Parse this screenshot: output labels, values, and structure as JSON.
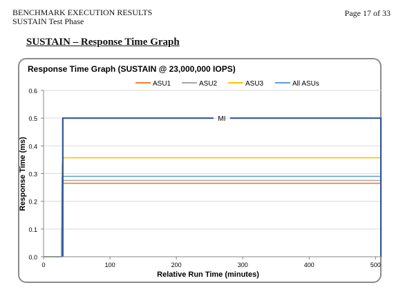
{
  "header": {
    "line1": "BENCHMARK EXECUTION RESULTS",
    "line2": "SUSTAIN Test Phase",
    "page": "Page 17 of 33"
  },
  "section_title": "SUSTAIN – Response Time Graph",
  "chart_data": {
    "type": "line",
    "title": "Response Time Graph (SUSTAIN @ 23,000,000 IOPS)",
    "xlabel": "Relative Run Time (minutes)",
    "ylabel": "Response Time (ms)",
    "xlim": [
      0,
      510
    ],
    "ylim": [
      0,
      0.6
    ],
    "xticks": [
      0,
      100,
      200,
      300,
      400,
      500
    ],
    "yticks": [
      "0.0",
      "0.1",
      "0.2",
      "0.3",
      "0.4",
      "0.5",
      "0.6"
    ],
    "grid": true,
    "legend_position": "top",
    "series": [
      {
        "name": "ASU1",
        "color": "#ED7D31",
        "x": [
          0,
          27,
          28,
          30,
          508
        ],
        "y": [
          0,
          0,
          0.27,
          0.265,
          0.265
        ]
      },
      {
        "name": "ASU2",
        "color": "#A5A5A5",
        "x": [
          0,
          27,
          28,
          30,
          508
        ],
        "y": [
          0,
          0,
          0.28,
          0.275,
          0.275
        ]
      },
      {
        "name": "ASU3",
        "color": "#FFC000",
        "x": [
          0,
          27,
          28,
          30,
          508
        ],
        "y": [
          0,
          0,
          0.33,
          0.357,
          0.357
        ]
      },
      {
        "name": "All ASUs",
        "color": "#5B9BD5",
        "x": [
          0,
          27,
          28,
          30,
          508
        ],
        "y": [
          0,
          0,
          0.29,
          0.29,
          0.29
        ]
      }
    ],
    "mi": {
      "label": "MI",
      "start": 29,
      "end": 508,
      "level": 0.5,
      "color": "#2E5597"
    }
  }
}
